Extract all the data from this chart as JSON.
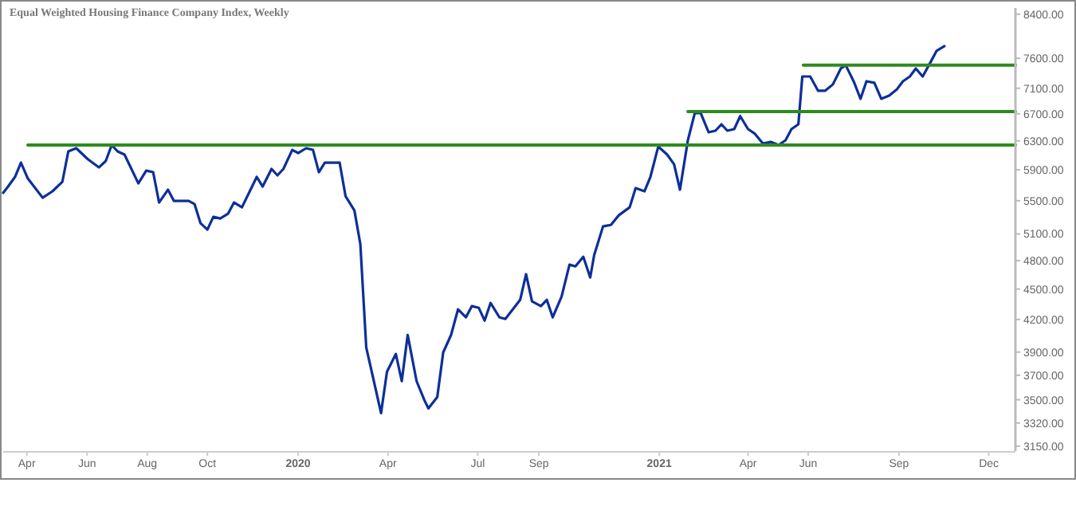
{
  "chart_data": {
    "type": "line",
    "title": "Equal Weighted Housing Finance Company Index, Weekly",
    "log": true,
    "grid": false,
    "marker": "none",
    "line_style": "solid",
    "xlim": [
      "2019-03-08",
      "2021-12-28"
    ],
    "xticks": [
      {
        "value": "2019-04-01",
        "label": "Apr"
      },
      {
        "value": "2019-06-01",
        "label": "Jun"
      },
      {
        "value": "2019-08-01",
        "label": "Aug"
      },
      {
        "value": "2019-10-01",
        "label": "Oct"
      },
      {
        "value": "2020-01-01",
        "label": "2020"
      },
      {
        "value": "2020-04-01",
        "label": "Apr"
      },
      {
        "value": "2020-07-01",
        "label": "Jul"
      },
      {
        "value": "2020-09-01",
        "label": "Sep"
      },
      {
        "value": "2021-01-01",
        "label": "2021"
      },
      {
        "value": "2021-04-01",
        "label": "Apr"
      },
      {
        "value": "2021-06-01",
        "label": "Jun"
      },
      {
        "value": "2021-09-01",
        "label": "Sep"
      },
      {
        "value": "2021-12-01",
        "label": "Dec"
      }
    ],
    "ylim": [
      3115,
      8520
    ],
    "yticks": [
      {
        "value": 3150,
        "label": "3150.00"
      },
      {
        "value": 3320,
        "label": "3320.00"
      },
      {
        "value": 3500,
        "label": "3500.00"
      },
      {
        "value": 3700,
        "label": "3700.00"
      },
      {
        "value": 3900,
        "label": "3900.00"
      },
      {
        "value": 4200,
        "label": "4200.00"
      },
      {
        "value": 4500,
        "label": "4500.00"
      },
      {
        "value": 4800,
        "label": "4800.00"
      },
      {
        "value": 5100,
        "label": "5100.00"
      },
      {
        "value": 5500,
        "label": "5500.00"
      },
      {
        "value": 5900,
        "label": "5900.00"
      },
      {
        "value": 6300,
        "label": "6300.00"
      },
      {
        "value": 6700,
        "label": "6700.00"
      },
      {
        "value": 7100,
        "label": "7100.00"
      },
      {
        "value": 7600,
        "label": "7600.00"
      },
      {
        "value": 8400,
        "label": "8400.00"
      }
    ],
    "series": [
      {
        "color": "#0d2f99",
        "x": [
          "2019-03-08",
          "2019-03-13",
          "2019-03-20",
          "2019-03-26",
          "2019-04-02",
          "2019-04-17",
          "2019-04-27",
          "2019-05-07",
          "2019-05-13",
          "2019-05-21",
          "2019-06-02",
          "2019-06-13",
          "2019-06-20",
          "2019-06-26",
          "2019-07-02",
          "2019-07-09",
          "2019-07-23",
          "2019-07-31",
          "2019-08-07",
          "2019-08-13",
          "2019-08-22",
          "2019-08-28",
          "2019-09-12",
          "2019-09-18",
          "2019-09-24",
          "2019-10-01",
          "2019-10-07",
          "2019-10-14",
          "2019-10-22",
          "2019-10-28",
          "2019-11-05",
          "2019-11-20",
          "2019-11-26",
          "2019-12-05",
          "2019-12-11",
          "2019-12-17",
          "2019-12-26",
          "2020-01-01",
          "2020-01-09",
          "2020-01-16",
          "2020-01-22",
          "2020-01-28",
          "2020-02-12",
          "2020-02-18",
          "2020-02-27",
          "2020-03-04",
          "2020-03-10",
          "2020-03-17",
          "2020-03-25",
          "2020-03-31",
          "2020-04-09",
          "2020-04-15",
          "2020-04-21",
          "2020-04-30",
          "2020-05-08",
          "2020-05-12",
          "2020-05-21",
          "2020-05-27",
          "2020-06-04",
          "2020-06-11",
          "2020-06-19",
          "2020-06-25",
          "2020-07-02",
          "2020-07-08",
          "2020-07-14",
          "2020-07-23",
          "2020-07-29",
          "2020-08-13",
          "2020-08-19",
          "2020-08-25",
          "2020-09-03",
          "2020-09-09",
          "2020-09-15",
          "2020-09-24",
          "2020-10-02",
          "2020-10-08",
          "2020-10-16",
          "2020-10-23",
          "2020-10-27",
          "2020-11-05",
          "2020-11-13",
          "2020-11-21",
          "2020-12-02",
          "2020-12-08",
          "2020-12-17",
          "2020-12-23",
          "2020-12-31",
          "2021-01-09",
          "2021-01-16",
          "2021-01-22",
          "2021-01-30",
          "2021-02-06",
          "2021-02-12",
          "2021-02-20",
          "2021-02-27",
          "2021-03-05",
          "2021-03-11",
          "2021-03-18",
          "2021-03-24",
          "2021-04-01",
          "2021-04-08",
          "2021-04-16",
          "2021-04-24",
          "2021-05-02",
          "2021-05-09",
          "2021-05-15",
          "2021-05-22",
          "2021-05-26",
          "2021-06-03",
          "2021-06-11",
          "2021-06-18",
          "2021-06-26",
          "2021-07-04",
          "2021-07-09",
          "2021-07-17",
          "2021-07-24",
          "2021-07-30",
          "2021-08-07",
          "2021-08-14",
          "2021-08-22",
          "2021-08-30",
          "2021-09-05",
          "2021-09-12",
          "2021-09-18",
          "2021-09-25",
          "2021-10-03",
          "2021-10-09",
          "2021-10-17"
        ],
        "values": [
          5599,
          5680,
          5805,
          5997,
          5784,
          5537,
          5619,
          5742,
          6151,
          6196,
          6041,
          5932,
          6019,
          6241,
          6151,
          6107,
          5721,
          5889,
          5868,
          5478,
          5639,
          5498,
          5498,
          5457,
          5226,
          5151,
          5302,
          5283,
          5341,
          5478,
          5418,
          5805,
          5680,
          5911,
          5826,
          5911,
          6173,
          6129,
          6196,
          6173,
          5868,
          5997,
          5997,
          5558,
          5379,
          4985,
          3940,
          3677,
          3395,
          3730,
          3883,
          3651,
          4055,
          3651,
          3495,
          3432,
          3521,
          3897,
          4055,
          4297,
          4220,
          4329,
          4313,
          4189,
          4360,
          4220,
          4205,
          4391,
          4654,
          4376,
          4329,
          4391,
          4220,
          4424,
          4756,
          4738,
          4843,
          4620,
          4860,
          5188,
          5206,
          5321,
          5418,
          5659,
          5619,
          5805,
          6219,
          6107,
          5975,
          5639,
          6309,
          6712,
          6712,
          6425,
          6448,
          6542,
          6448,
          6471,
          6664,
          6471,
          6402,
          6264,
          6287,
          6241,
          6309,
          6471,
          6542,
          7292,
          7292,
          7059,
          7059,
          7163,
          7426,
          7481,
          7214,
          6932,
          7214,
          7189,
          6932,
          6982,
          7085,
          7214,
          7292,
          7426,
          7292,
          7535,
          7728,
          7812
        ]
      },
      {
        "color": "#2e8b1e",
        "x": [
          "2019-04-02",
          "2021-12-28"
        ],
        "values": [
          6241,
          6241
        ]
      },
      {
        "color": "#2e8b1e",
        "x": [
          "2021-01-30",
          "2021-12-28"
        ],
        "values": [
          6734,
          6734
        ]
      },
      {
        "color": "#2e8b1e",
        "x": [
          "2021-05-27",
          "2021-12-28"
        ],
        "values": [
          7481,
          7481
        ]
      }
    ]
  }
}
